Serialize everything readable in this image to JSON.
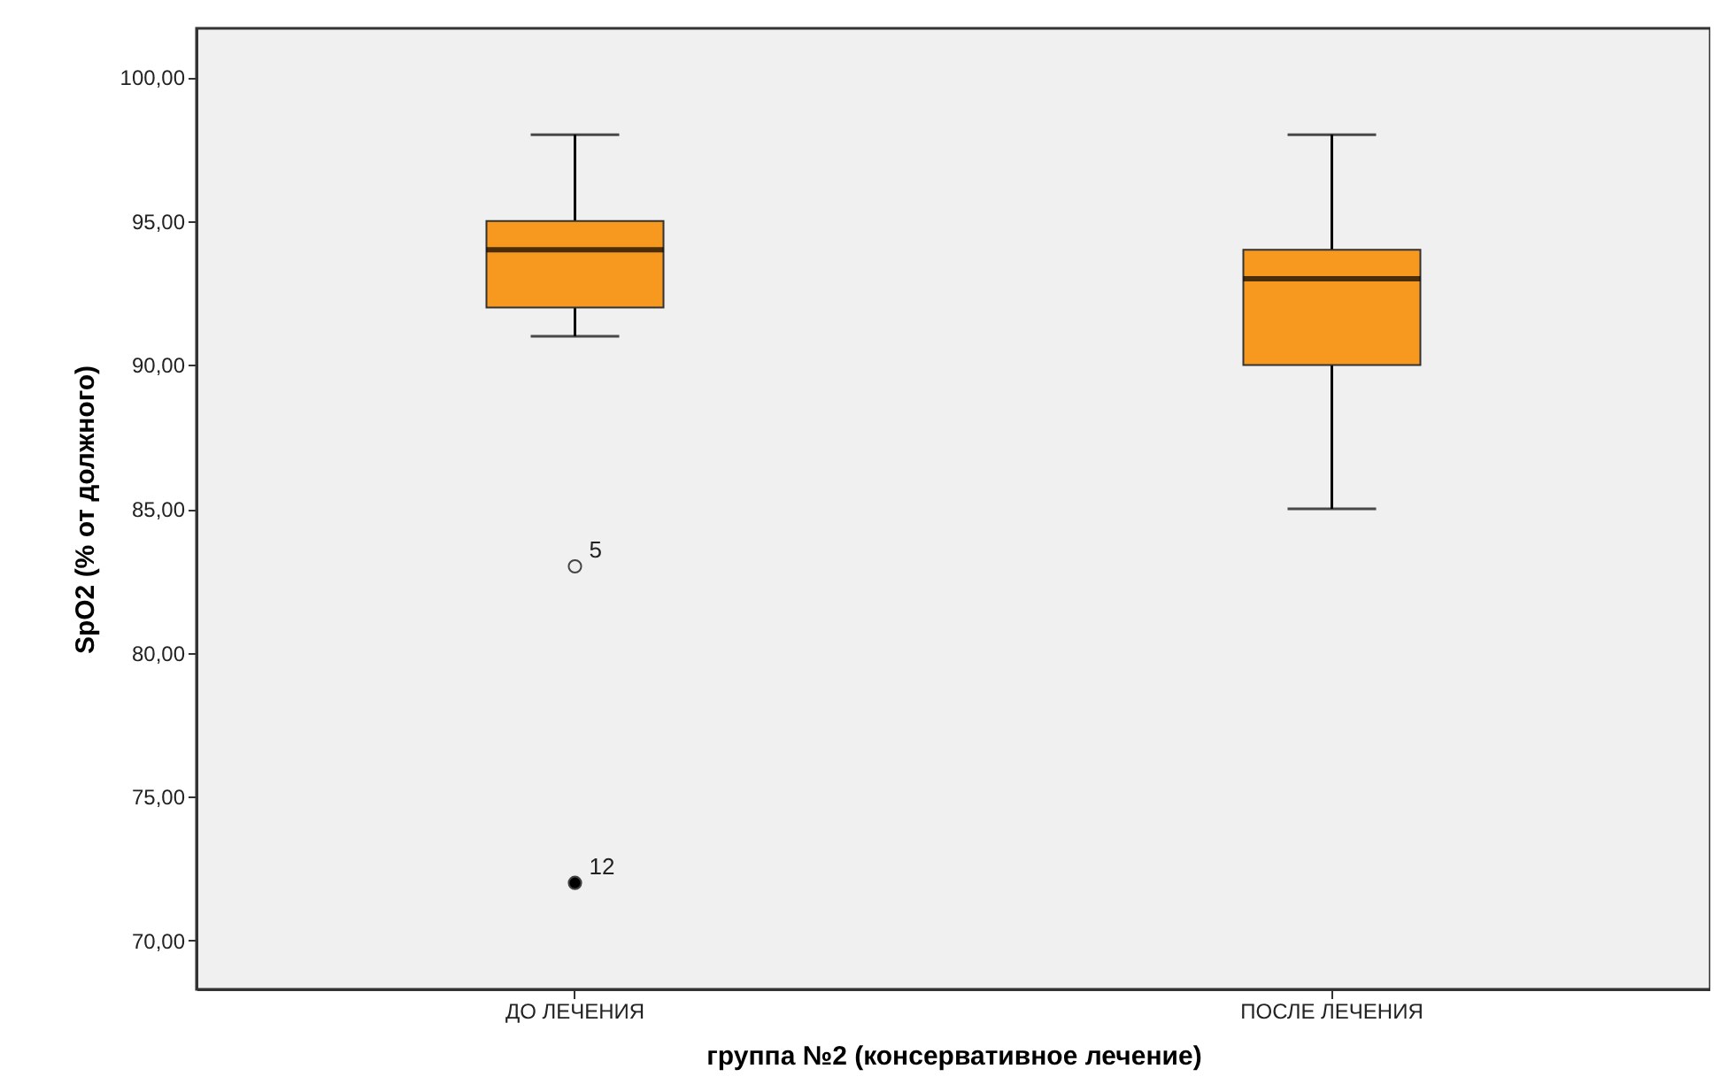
{
  "chart_data": {
    "type": "box",
    "xlabel": "группа №2 (консервативное лечение)",
    "ylabel": "SpO2 (% от должного)",
    "categories": [
      "ДО ЛЕЧЕНИЯ",
      "ПОСЛЕ ЛЕЧЕНИЯ"
    ],
    "series": [
      {
        "color": "#f7991f",
        "boxes": [
          {
            "low": 91,
            "q1": 92,
            "median": 94,
            "q3": 95,
            "high": 98,
            "outliers": [
              83,
              72
            ]
          },
          {
            "low": 85,
            "q1": 90,
            "median": 93,
            "q3": 94,
            "high": 98
          }
        ]
      }
    ],
    "ylim": [
      68.3,
      101.7
    ],
    "yticks": [
      {
        "value": 70,
        "label": "70,00"
      },
      {
        "value": 75,
        "label": "75,00"
      },
      {
        "value": 80,
        "label": "80,00"
      },
      {
        "value": 85,
        "label": "85,00"
      },
      {
        "value": 90,
        "label": "90,00"
      },
      {
        "value": 95,
        "label": "95,00"
      },
      {
        "value": 100,
        "label": "100,00"
      }
    ],
    "annotations": [
      "5",
      "12"
    ],
    "grid": false
  }
}
